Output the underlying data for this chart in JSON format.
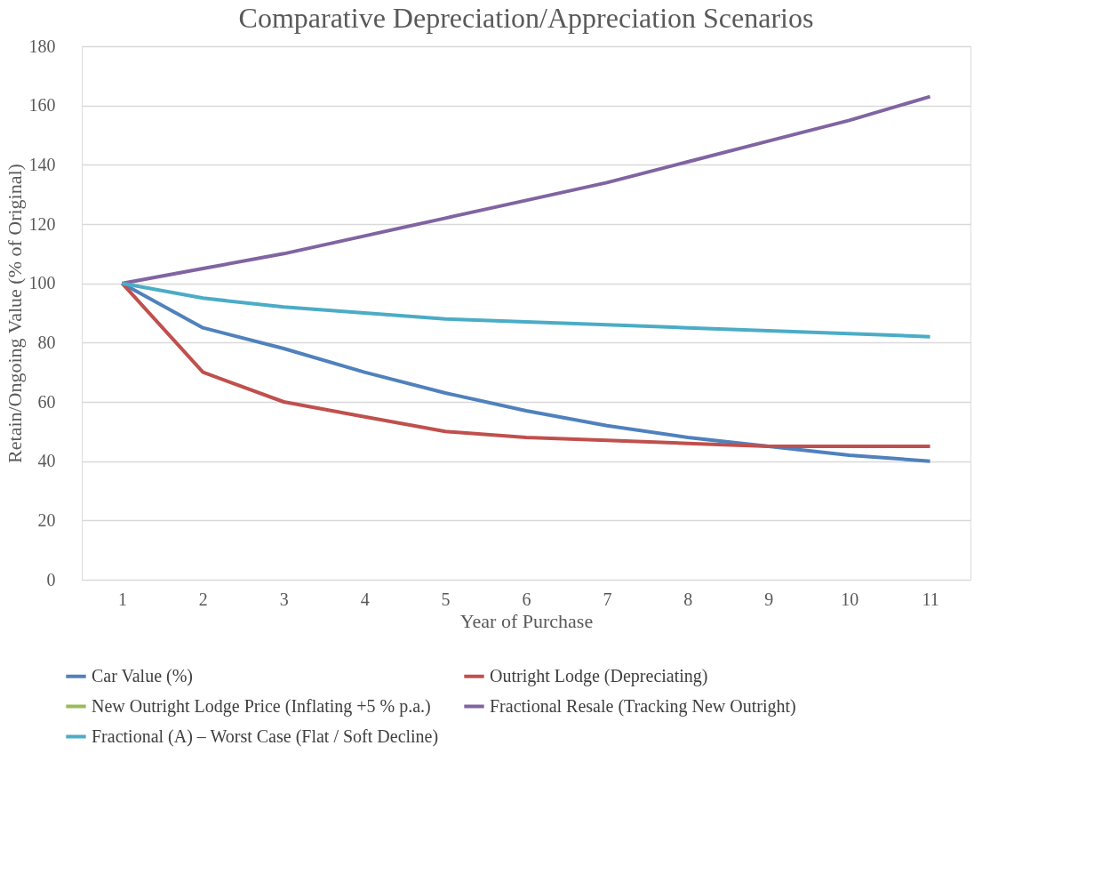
{
  "chart_data": {
    "type": "line",
    "title": "Comparative Depreciation/Appreciation Scenarios",
    "xlabel": "Year of Purchase",
    "ylabel": "Retain/Ongoing Value (% of Original)",
    "categories": [
      "1",
      "2",
      "3",
      "4",
      "5",
      "6",
      "7",
      "8",
      "9",
      "10",
      "11"
    ],
    "series": [
      {
        "name": "Car Value (%)",
        "color": "#4f81bd",
        "values": [
          100,
          85,
          78,
          70,
          63,
          57,
          52,
          48,
          45,
          42,
          40
        ]
      },
      {
        "name": "Outright Lodge (Depreciating)",
        "color": "#c0504d",
        "values": [
          100,
          70,
          60,
          55,
          50,
          48,
          47,
          46,
          45,
          45,
          45
        ]
      },
      {
        "name": "New Outright Lodge Price (Inflating +5 % p.a.)",
        "color": "#9bbb59",
        "values": [
          null,
          null,
          null,
          null,
          null,
          null,
          null,
          null,
          null,
          null,
          null
        ]
      },
      {
        "name": "Fractional Resale (Tracking New Outright)",
        "color": "#8064a2",
        "values": [
          100,
          105,
          110,
          116,
          122,
          128,
          134,
          141,
          148,
          155,
          163
        ]
      },
      {
        "name": "Fractional (A) – Worst Case (Flat / Soft Decline)",
        "color": "#4bacc6",
        "values": [
          100,
          95,
          92,
          90,
          88,
          87,
          86,
          85,
          84,
          83,
          82
        ]
      }
    ],
    "ylim": [
      0,
      180
    ],
    "yticks": [
      0,
      20,
      40,
      60,
      80,
      100,
      120,
      140,
      160,
      180
    ],
    "grid": "y",
    "legend": "bottom",
    "marker": "none",
    "line_style": "solid"
  }
}
